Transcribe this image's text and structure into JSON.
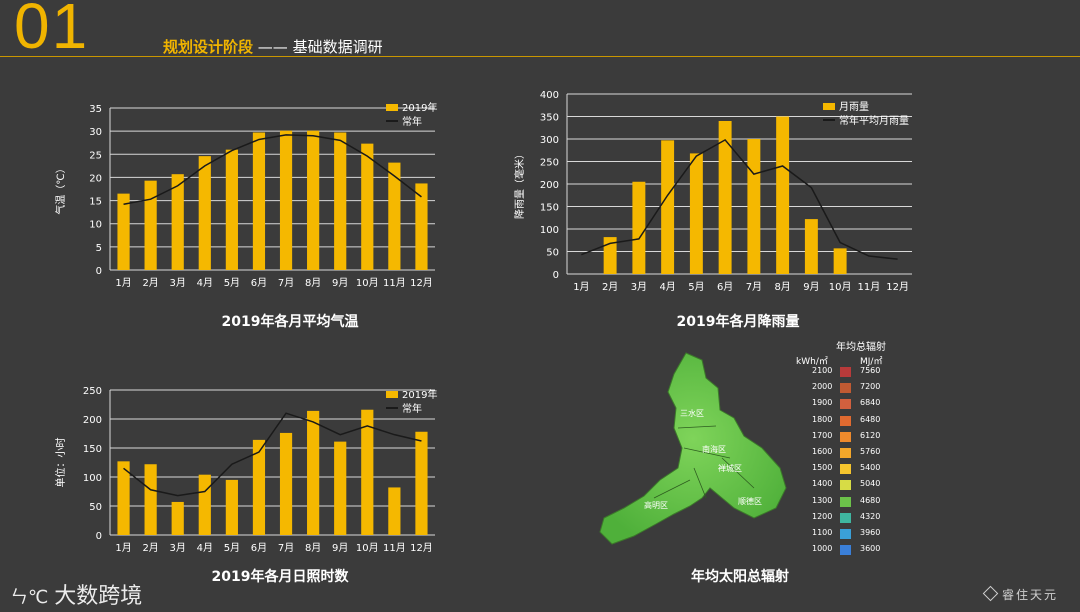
{
  "header": {
    "number": "01",
    "title_main": "规划设计阶段",
    "title_sep": " —— ",
    "title_sub": "基础数据调研"
  },
  "chart_data": [
    {
      "type": "bar",
      "title": "2019年各月平均气温",
      "ylabel": "气温（℃）",
      "categories": [
        "1月",
        "2月",
        "3月",
        "4月",
        "5月",
        "6月",
        "7月",
        "8月",
        "9月",
        "10月",
        "11月",
        "12月"
      ],
      "ylim": [
        0,
        35
      ],
      "yticks": [
        0,
        5,
        10,
        15,
        20,
        25,
        30,
        35
      ],
      "series": [
        {
          "name": "2019年",
          "kind": "bar",
          "color": "#f5b800",
          "values": [
            16.5,
            19.3,
            20.7,
            24.6,
            26,
            29.7,
            30.1,
            30.1,
            29.7,
            27.3,
            23.2,
            18.7
          ]
        },
        {
          "name": "常年",
          "kind": "line",
          "color": "#1a1a1a",
          "values": [
            14.2,
            15.3,
            18.2,
            22.5,
            25.8,
            28.2,
            29.2,
            29,
            28,
            24.6,
            20.3,
            15.8
          ]
        }
      ],
      "legend": "top-right",
      "grid": true
    },
    {
      "type": "bar",
      "title": "2019年各月降雨量",
      "ylabel": "降雨量（毫米）",
      "categories": [
        "1月",
        "2月",
        "3月",
        "4月",
        "5月",
        "6月",
        "7月",
        "8月",
        "9月",
        "10月",
        "11月",
        "12月"
      ],
      "ylim": [
        0,
        400
      ],
      "yticks": [
        0,
        50,
        100,
        150,
        200,
        250,
        300,
        350,
        400
      ],
      "series": [
        {
          "name": "月雨量",
          "kind": "bar",
          "color": "#f5b800",
          "values": [
            0,
            82,
            205,
            297,
            268,
            340,
            300,
            350,
            122,
            57,
            0,
            0
          ]
        },
        {
          "name": "常年平均月雨量",
          "kind": "line",
          "color": "#1a1a1a",
          "values": [
            43,
            68,
            78,
            175,
            262,
            298,
            222,
            240,
            192,
            70,
            40,
            33
          ]
        }
      ],
      "legend": "top-right",
      "grid": true
    },
    {
      "type": "bar",
      "title": "2019年各月日照时数",
      "ylabel": "单位：小时",
      "categories": [
        "1月",
        "2月",
        "3月",
        "4月",
        "5月",
        "6月",
        "7月",
        "8月",
        "9月",
        "10月",
        "11月",
        "12月"
      ],
      "ylim": [
        0,
        250
      ],
      "yticks": [
        0,
        50,
        100,
        150,
        200,
        250
      ],
      "series": [
        {
          "name": "2019年",
          "kind": "bar",
          "color": "#f5b800",
          "values": [
            127,
            122,
            57,
            104,
            95,
            164,
            176,
            214,
            161,
            216,
            82,
            178
          ]
        },
        {
          "name": "常年",
          "kind": "line",
          "color": "#1a1a1a",
          "values": [
            115,
            78,
            68,
            75,
            122,
            143,
            210,
            195,
            173,
            188,
            173,
            162
          ]
        }
      ],
      "legend": "top-right",
      "grid": true
    }
  ],
  "radiation": {
    "title": "年均太阳总辐射",
    "legend_title": "年均总辐射",
    "unit_left": "kWh/㎡",
    "unit_right": "MJ/㎡",
    "districts": [
      "三水区",
      "南海区",
      "禅城区",
      "顺德区",
      "高明区"
    ],
    "scale": [
      {
        "kwh": "2100",
        "mj": "7560",
        "color": "#b83a3a"
      },
      {
        "kwh": "2000",
        "mj": "7200",
        "color": "#c05a32"
      },
      {
        "kwh": "1900",
        "mj": "6840",
        "color": "#d2603e"
      },
      {
        "kwh": "1800",
        "mj": "6480",
        "color": "#e06a30"
      },
      {
        "kwh": "1700",
        "mj": "6120",
        "color": "#ef8a2c"
      },
      {
        "kwh": "1600",
        "mj": "5760",
        "color": "#f4a72a"
      },
      {
        "kwh": "1500",
        "mj": "5400",
        "color": "#f5c52e"
      },
      {
        "kwh": "1400",
        "mj": "5040",
        "color": "#d7dc45"
      },
      {
        "kwh": "1300",
        "mj": "4680",
        "color": "#6cc24a"
      },
      {
        "kwh": "1200",
        "mj": "4320",
        "color": "#3fb6a0"
      },
      {
        "kwh": "1100",
        "mj": "3960",
        "color": "#3aa0d8"
      },
      {
        "kwh": "1000",
        "mj": "3600",
        "color": "#3a7fd8"
      }
    ]
  },
  "footer": {
    "logo_mark": "ㄣ℃",
    "logo_text": "大数跨境",
    "brand": "睿住天元"
  }
}
